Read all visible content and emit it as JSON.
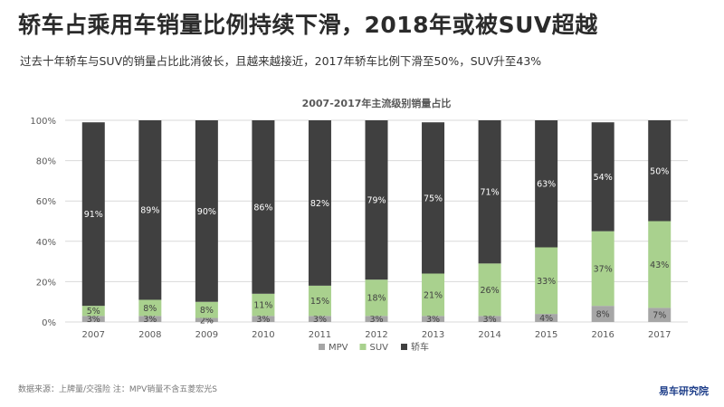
{
  "header": {
    "title": "轿车占乘用车销量比例持续下滑，2018年或被SUV超越",
    "subtitle": "过去十年轿车与SUV的销量占比此消彼长，且越来越接近，2017年轿车比例下滑至50%，SUV升至43%"
  },
  "footer": {
    "source": "数据来源：上牌量/交强险 注：MPV销量不含五菱宏光S",
    "brand": "易车研究院"
  },
  "colors": {
    "MPV": "#a6a6a6",
    "SUV": "#a9d18e",
    "轿车": "#404040",
    "grid": "#d9d9d9",
    "axis_text": "#595959"
  },
  "chart_data": {
    "type": "bar",
    "stacked": true,
    "title": "2007-2017年主流级别销量占比",
    "xlabel": "",
    "ylabel": "",
    "ylim": [
      0,
      100
    ],
    "y_ticks": [
      "0%",
      "20%",
      "40%",
      "60%",
      "80%",
      "100%"
    ],
    "grid": true,
    "legend_position": "bottom",
    "categories": [
      "2007",
      "2008",
      "2009",
      "2010",
      "2011",
      "2012",
      "2013",
      "2014",
      "2015",
      "2016",
      "2017"
    ],
    "series": [
      {
        "name": "MPV",
        "values": [
          3,
          3,
          2,
          3,
          3,
          3,
          3,
          3,
          4,
          8,
          7
        ],
        "labels": [
          "3%",
          "3%",
          "2%",
          "3%",
          "3%",
          "3%",
          "3%",
          "3%",
          "4%",
          "8%",
          "7%"
        ]
      },
      {
        "name": "SUV",
        "values": [
          5,
          8,
          8,
          11,
          15,
          18,
          21,
          26,
          33,
          37,
          43
        ],
        "labels": [
          "5%",
          "8%",
          "8%",
          "11%",
          "15%",
          "18%",
          "21%",
          "26%",
          "33%",
          "37%",
          "43%"
        ]
      },
      {
        "name": "轿车",
        "values": [
          91,
          89,
          90,
          86,
          82,
          79,
          75,
          71,
          63,
          54,
          50
        ],
        "labels": [
          "91%",
          "89%",
          "90%",
          "86%",
          "82%",
          "79%",
          "75%",
          "71%",
          "63%",
          "54%",
          "50%"
        ]
      }
    ]
  }
}
